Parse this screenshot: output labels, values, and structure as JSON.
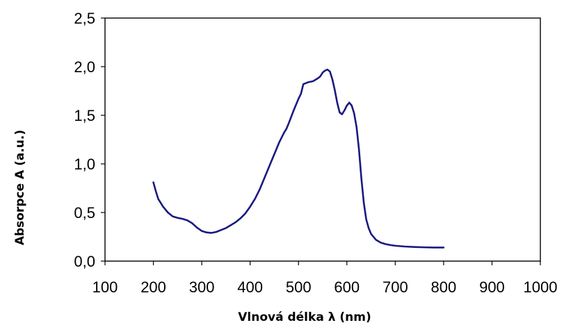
{
  "chart_data": {
    "type": "line",
    "xlabel": "Vlnová délka λ (nm)",
    "ylabel": "Absorpce A (a.u.)",
    "xlim": [
      100,
      1000
    ],
    "ylim": [
      0.0,
      2.5
    ],
    "x_ticks": [
      "100",
      "200",
      "300",
      "400",
      "500",
      "600",
      "700",
      "800",
      "900",
      "1000"
    ],
    "y_ticks": [
      "0,0",
      "0,5",
      "1,0",
      "1,5",
      "2,0",
      "2,5"
    ],
    "grid": false,
    "legend": "none",
    "series": [
      {
        "color": "#1a1a80",
        "x": [
          200,
          205,
          210,
          220,
          230,
          240,
          250,
          260,
          270,
          280,
          290,
          300,
          310,
          320,
          330,
          340,
          350,
          360,
          370,
          380,
          390,
          400,
          410,
          420,
          430,
          440,
          450,
          460,
          470,
          475,
          480,
          490,
          500,
          505,
          510,
          520,
          530,
          540,
          545,
          550,
          555,
          560,
          565,
          570,
          575,
          580,
          585,
          590,
          595,
          600,
          605,
          610,
          615,
          620,
          625,
          630,
          635,
          640,
          645,
          650,
          660,
          670,
          680,
          690,
          700,
          720,
          740,
          760,
          780,
          800
        ],
        "y": [
          0.81,
          0.72,
          0.64,
          0.56,
          0.5,
          0.46,
          0.445,
          0.435,
          0.42,
          0.39,
          0.345,
          0.31,
          0.295,
          0.29,
          0.3,
          0.32,
          0.34,
          0.37,
          0.4,
          0.44,
          0.49,
          0.56,
          0.64,
          0.74,
          0.86,
          0.98,
          1.1,
          1.22,
          1.32,
          1.36,
          1.42,
          1.55,
          1.67,
          1.72,
          1.82,
          1.84,
          1.85,
          1.88,
          1.9,
          1.94,
          1.96,
          1.97,
          1.95,
          1.87,
          1.76,
          1.63,
          1.53,
          1.51,
          1.55,
          1.6,
          1.63,
          1.6,
          1.52,
          1.38,
          1.15,
          0.85,
          0.6,
          0.43,
          0.34,
          0.28,
          0.22,
          0.19,
          0.175,
          0.165,
          0.158,
          0.15,
          0.145,
          0.142,
          0.14,
          0.14
        ]
      }
    ]
  }
}
